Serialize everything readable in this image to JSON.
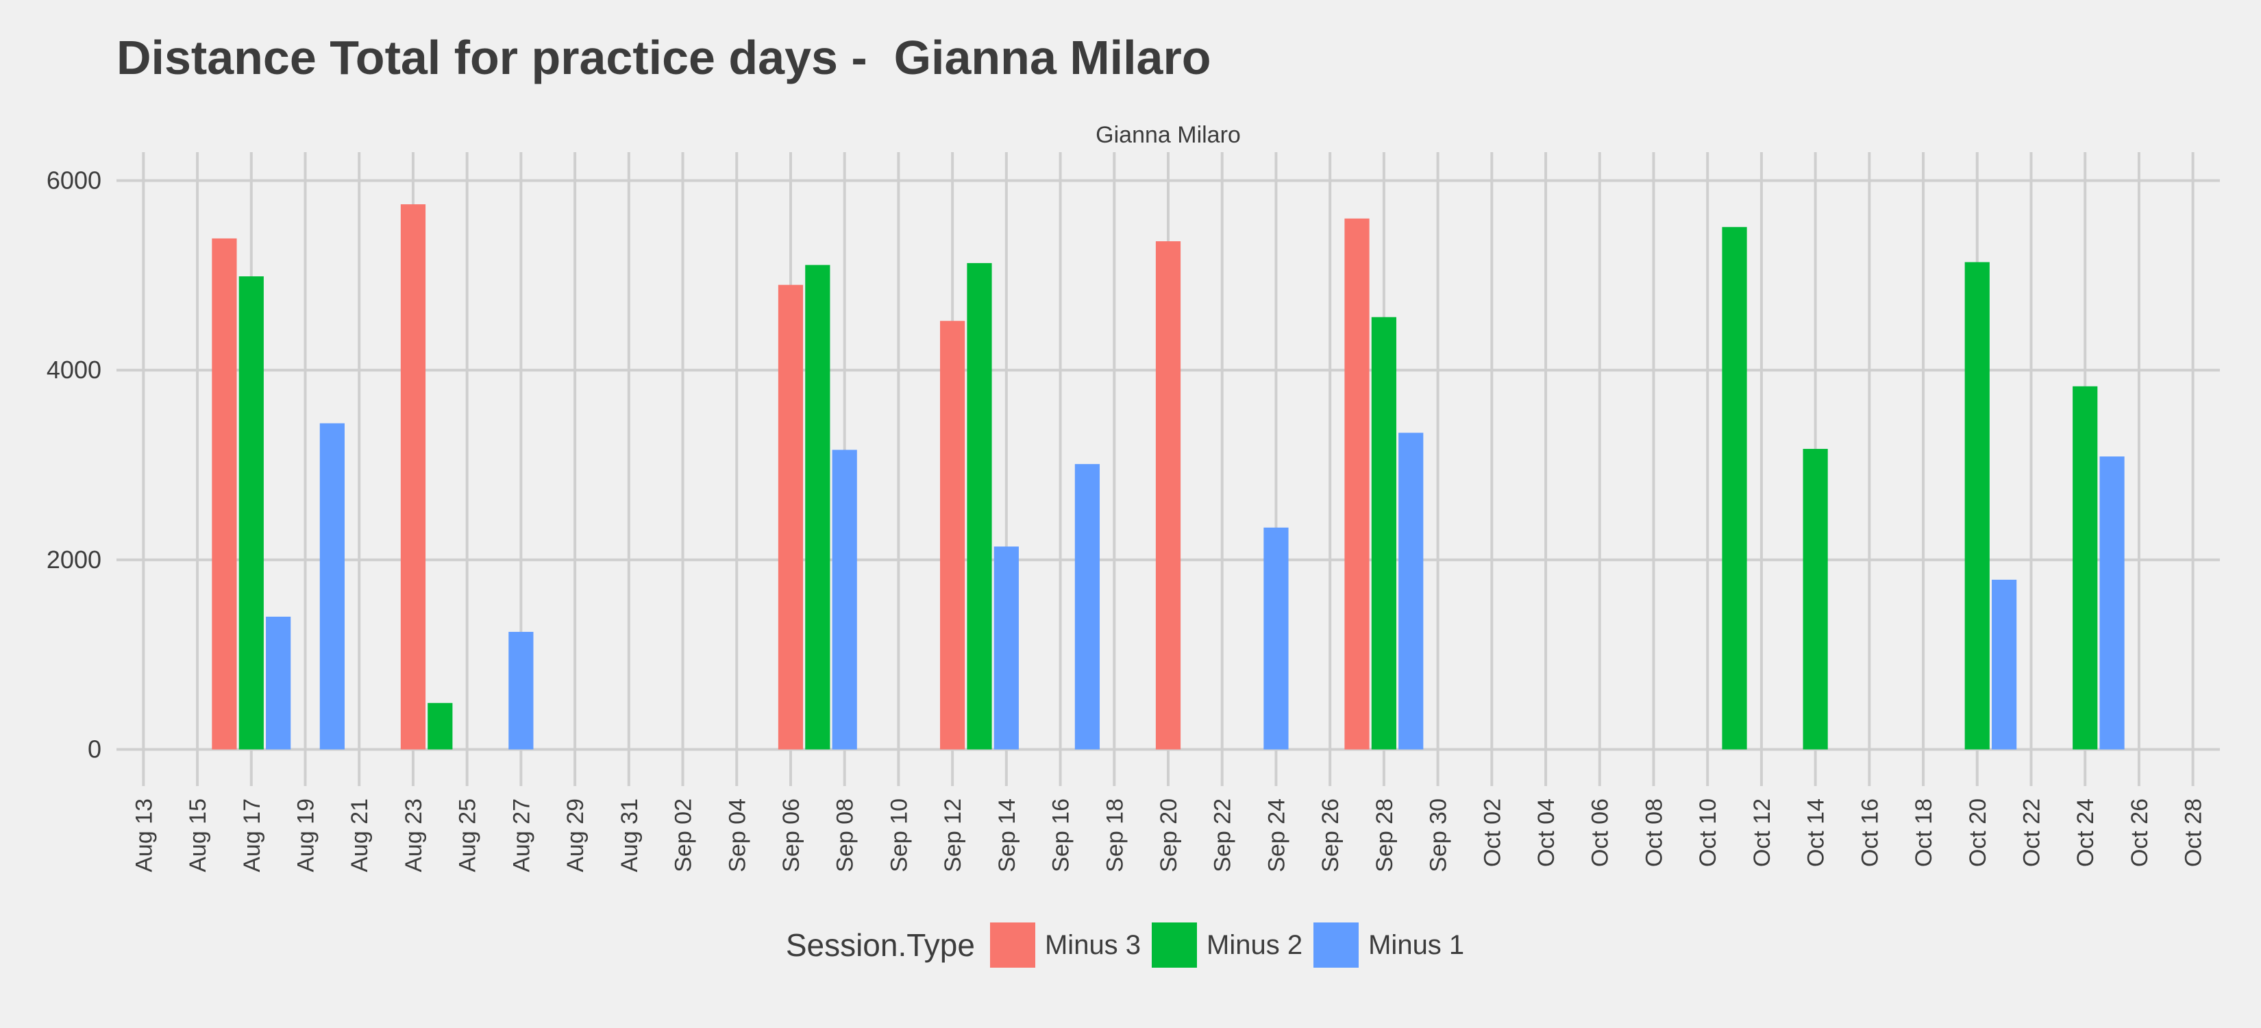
{
  "chart_data": {
    "type": "bar",
    "title": "Distance Total for practice days -  Gianna Milaro",
    "facet_label": "Gianna Milaro",
    "xlabel": "",
    "ylabel": "",
    "ylim": [
      -300,
      6300
    ],
    "y_ticks": [
      0,
      2000,
      4000,
      6000
    ],
    "x_range": [
      "2022-08-13",
      "2022-10-28"
    ],
    "x_tick_labels": [
      "Aug 13",
      "Aug 15",
      "Aug 17",
      "Aug 19",
      "Aug 21",
      "Aug 23",
      "Aug 25",
      "Aug 27",
      "Aug 29",
      "Aug 31",
      "Sep 02",
      "Sep 04",
      "Sep 06",
      "Sep 08",
      "Sep 10",
      "Sep 12",
      "Sep 14",
      "Sep 16",
      "Sep 18",
      "Sep 20",
      "Sep 22",
      "Sep 24",
      "Sep 26",
      "Sep 28",
      "Sep 30",
      "Oct 02",
      "Oct 04",
      "Oct 06",
      "Oct 08",
      "Oct 10",
      "Oct 12",
      "Oct 14",
      "Oct 16",
      "Oct 18",
      "Oct 20",
      "Oct 22",
      "Oct 24",
      "Oct 26",
      "Oct 28"
    ],
    "grid": true,
    "legend": {
      "title": "Session.Type",
      "position": "bottom",
      "entries": [
        {
          "name": "Minus 3",
          "color": "#f8766d"
        },
        {
          "name": "Minus 2",
          "color": "#00ba38"
        },
        {
          "name": "Minus 1",
          "color": "#619cff"
        }
      ]
    },
    "series": [
      {
        "name": "Minus 3",
        "color": "#f8766d",
        "points": [
          {
            "x": "2022-08-16",
            "y": 5390
          },
          {
            "x": "2022-08-23",
            "y": 5750
          },
          {
            "x": "2022-09-06",
            "y": 4900
          },
          {
            "x": "2022-09-12",
            "y": 4520
          },
          {
            "x": "2022-09-20",
            "y": 5360
          },
          {
            "x": "2022-09-27",
            "y": 5600
          }
        ]
      },
      {
        "name": "Minus 2",
        "color": "#00ba38",
        "points": [
          {
            "x": "2022-08-17",
            "y": 4990
          },
          {
            "x": "2022-08-24",
            "y": 490
          },
          {
            "x": "2022-09-07",
            "y": 5110
          },
          {
            "x": "2022-09-13",
            "y": 5130
          },
          {
            "x": "2022-09-28",
            "y": 4560
          },
          {
            "x": "2022-10-11",
            "y": 5510
          },
          {
            "x": "2022-10-14",
            "y": 3170
          },
          {
            "x": "2022-10-20",
            "y": 5140
          },
          {
            "x": "2022-10-24",
            "y": 3830
          }
        ]
      },
      {
        "name": "Minus 1",
        "color": "#619cff",
        "points": [
          {
            "x": "2022-08-18",
            "y": 1400
          },
          {
            "x": "2022-08-20",
            "y": 3440
          },
          {
            "x": "2022-08-27",
            "y": 1240
          },
          {
            "x": "2022-09-08",
            "y": 3160
          },
          {
            "x": "2022-09-14",
            "y": 2140
          },
          {
            "x": "2022-09-17",
            "y": 3010
          },
          {
            "x": "2022-09-24",
            "y": 2340
          },
          {
            "x": "2022-09-29",
            "y": 3340
          },
          {
            "x": "2022-10-21",
            "y": 1790
          },
          {
            "x": "2022-10-25",
            "y": 3090
          }
        ]
      }
    ]
  }
}
